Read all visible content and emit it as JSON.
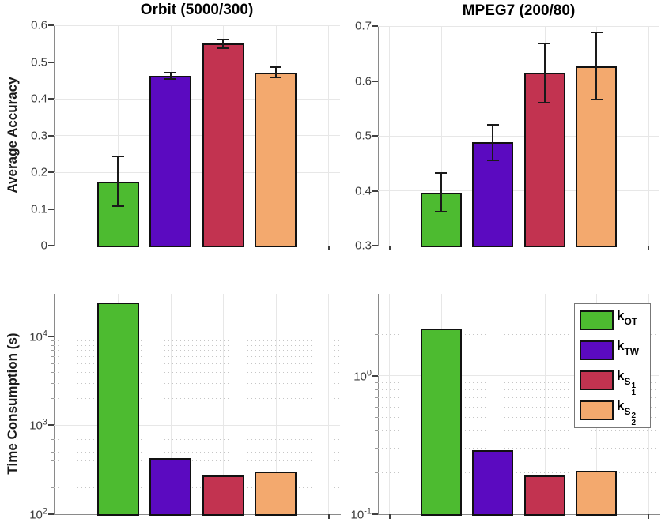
{
  "figure_bg": "#ffffff",
  "series": [
    {
      "id": "k_OT",
      "color": "#4DBB30",
      "legend_label": {
        "main": "k",
        "sub": "OT"
      }
    },
    {
      "id": "k_TW",
      "color": "#5B0AC0",
      "legend_label": {
        "main": "k",
        "sub": "TW"
      }
    },
    {
      "id": "k_S1",
      "color": "#C23350",
      "legend_label": {
        "main": "k",
        "sub": "S",
        "sup2": "1",
        "sub2": "1"
      }
    },
    {
      "id": "k_S2",
      "color": "#F3A96E",
      "legend_label": {
        "main": "k",
        "sub": "S",
        "sup2": "2",
        "sub2": "2"
      }
    }
  ],
  "chart_data": [
    {
      "id": "orbit-accuracy",
      "type": "bar",
      "title": "Orbit (5000/300)",
      "ylabel": "Average Accuracy",
      "scale": "linear",
      "ylim": [
        0,
        0.6
      ],
      "yticks": [
        {
          "v": 0,
          "label": "0"
        },
        {
          "v": 0.1,
          "label": "0.1"
        },
        {
          "v": 0.2,
          "label": "0.2"
        },
        {
          "v": 0.3,
          "label": "0.3"
        },
        {
          "v": 0.4,
          "label": "0.4"
        },
        {
          "v": 0.5,
          "label": "0.5"
        },
        {
          "v": 0.6,
          "label": "0.6"
        }
      ],
      "categories": [
        "k_OT",
        "k_TW",
        "k_S1",
        "k_S2"
      ],
      "values": [
        0.175,
        0.463,
        0.55,
        0.471
      ],
      "errors": [
        [
          0.107,
          0.242
        ],
        [
          0.454,
          0.472
        ],
        [
          0.537,
          0.562
        ],
        [
          0.457,
          0.485
        ]
      ],
      "grid": true
    },
    {
      "id": "mpeg7-accuracy",
      "type": "bar",
      "title": "MPEG7 (200/80)",
      "ylabel": "",
      "scale": "linear",
      "ylim": [
        0.3,
        0.7
      ],
      "yticks": [
        {
          "v": 0.3,
          "label": "0.3"
        },
        {
          "v": 0.4,
          "label": "0.4"
        },
        {
          "v": 0.5,
          "label": "0.5"
        },
        {
          "v": 0.6,
          "label": "0.6"
        },
        {
          "v": 0.7,
          "label": "0.7"
        }
      ],
      "categories": [
        "k_OT",
        "k_TW",
        "k_S1",
        "k_S2"
      ],
      "values": [
        0.397,
        0.488,
        0.615,
        0.627
      ],
      "errors": [
        [
          0.362,
          0.432
        ],
        [
          0.456,
          0.52
        ],
        [
          0.561,
          0.669
        ],
        [
          0.566,
          0.688
        ]
      ],
      "grid": true
    },
    {
      "id": "orbit-time",
      "type": "bar",
      "ylabel": "Time Consumption (s)",
      "scale": "log",
      "ylim": [
        100,
        30000
      ],
      "yticks": [
        {
          "v": 100,
          "base": "10",
          "exp": "2"
        },
        {
          "v": 1000,
          "base": "10",
          "exp": "3"
        },
        {
          "v": 10000,
          "base": "10",
          "exp": "4"
        }
      ],
      "categories": [
        "k_OT",
        "k_TW",
        "k_S1",
        "k_S2"
      ],
      "values": [
        24000,
        430,
        270,
        300
      ],
      "grid": true,
      "minor_grid": true
    },
    {
      "id": "mpeg7-time",
      "type": "bar",
      "ylabel": "",
      "scale": "log",
      "ylim": [
        0.1,
        3.9
      ],
      "yticks": [
        {
          "v": 1,
          "base": "10",
          "exp": "0"
        },
        {
          "v": 0.1,
          "base": "10",
          "exp": "-1"
        }
      ],
      "categories": [
        "k_OT",
        "k_TW",
        "k_S1",
        "k_S2"
      ],
      "values": [
        2.2,
        0.29,
        0.19,
        0.205
      ],
      "grid": true,
      "minor_grid": true
    }
  ],
  "legend": {
    "entries": [
      "k_OT",
      "k_TW",
      "k_S1",
      "k_S2"
    ]
  }
}
